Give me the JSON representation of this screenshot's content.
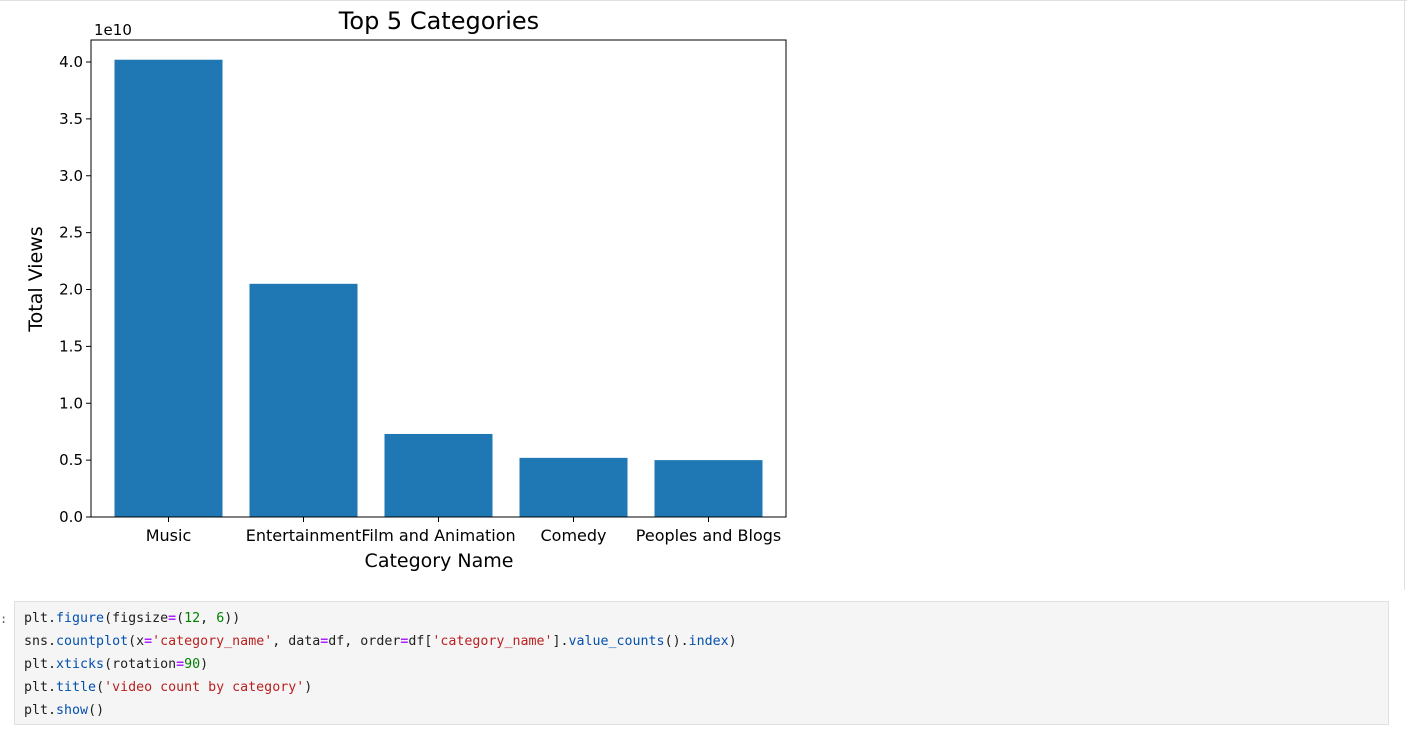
{
  "chart_data": {
    "type": "bar",
    "title": "Top 5 Categories",
    "xlabel": "Category Name",
    "ylabel": "Total Views",
    "offset_label": "1e10",
    "categories": [
      "Music",
      "Entertainment",
      "Film and Animation",
      "Comedy",
      "Peoples and Blogs"
    ],
    "values": [
      4.02,
      2.05,
      0.73,
      0.52,
      0.5
    ],
    "ylim": [
      0,
      4.2
    ],
    "yticks": [
      "0.0",
      "0.5",
      "1.0",
      "1.5",
      "2.0",
      "2.5",
      "3.0",
      "3.5",
      "4.0"
    ],
    "bar_color": "#1f77b4",
    "grid": false
  },
  "cell": {
    "prompt": ":",
    "code_lines": [
      [
        [
          "plt.",
          ""
        ],
        [
          "figure",
          "kw"
        ],
        [
          "(figsize",
          ""
        ],
        [
          "=",
          "op"
        ],
        [
          "(",
          ""
        ],
        [
          "12",
          "num"
        ],
        [
          ", ",
          ""
        ],
        [
          "6",
          "num"
        ],
        [
          "))",
          ""
        ]
      ],
      [
        [
          "sns.",
          ""
        ],
        [
          "countplot",
          "kw"
        ],
        [
          "(x",
          ""
        ],
        [
          "=",
          "op"
        ],
        [
          "'category_name'",
          "str"
        ],
        [
          ", data",
          ""
        ],
        [
          "=",
          "op"
        ],
        [
          "df, order",
          ""
        ],
        [
          "=",
          "op"
        ],
        [
          "df[",
          ""
        ],
        [
          "'category_name'",
          "str"
        ],
        [
          "].",
          ""
        ],
        [
          "value_counts",
          "kw"
        ],
        [
          "().",
          ""
        ],
        [
          "index",
          "kw"
        ],
        [
          ")",
          ""
        ]
      ],
      [
        [
          "plt.",
          ""
        ],
        [
          "xticks",
          "kw"
        ],
        [
          "(rotation",
          ""
        ],
        [
          "=",
          "op"
        ],
        [
          "90",
          "num"
        ],
        [
          ")",
          ""
        ]
      ],
      [
        [
          "plt.",
          ""
        ],
        [
          "title",
          "kw"
        ],
        [
          "(",
          ""
        ],
        [
          "'video count by category'",
          "str"
        ],
        [
          ")",
          ""
        ]
      ],
      [
        [
          "plt.",
          ""
        ],
        [
          "show",
          "kw"
        ],
        [
          "()",
          ""
        ]
      ]
    ]
  }
}
